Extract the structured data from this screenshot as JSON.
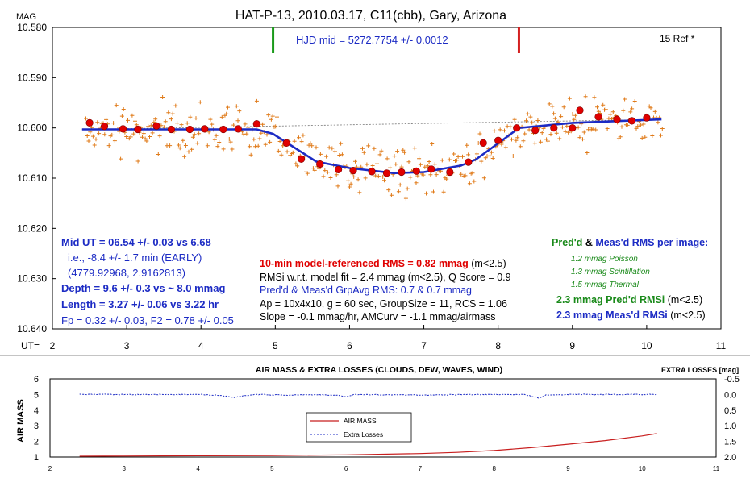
{
  "chart_data": [
    {
      "type": "scatter",
      "title": "HAT-P-13, 2010.03.17, C11(cbb), Gary, Arizona",
      "ylabel": "MAG",
      "xlabel": "UT=",
      "xlim": [
        2,
        11
      ],
      "ylim": [
        10.64,
        10.58
      ],
      "inverted_y": true,
      "x_ticks": [
        "2",
        "3",
        "4",
        "5",
        "6",
        "7",
        "8",
        "9",
        "10",
        "11"
      ],
      "y_ticks": [
        "10.580",
        "10.590",
        "10.600",
        "10.610",
        "10.620",
        "10.630",
        "10.640"
      ],
      "colors": {
        "raw": "#e07b1a",
        "binned": "#e00000",
        "model": "#1c2bc4",
        "baseline": "#777777",
        "ingress_marker": "#1a9a1a",
        "egress_marker": "#d42020"
      },
      "hjd_label": "HJD mid = 5272.7754 +/- 0.0012",
      "ref_label": "15 Ref *",
      "ingress_ut": 4.97,
      "egress_ut": 8.28,
      "series": [
        {
          "kind": "model",
          "x": [
            2.4,
            4.75,
            4.97,
            5.55,
            6.0,
            6.6,
            7.0,
            7.5,
            7.7,
            8.1,
            8.28,
            9.0,
            10.2
          ],
          "y": [
            10.6003,
            10.6003,
            10.6012,
            10.6067,
            10.608,
            10.609,
            10.6088,
            10.6075,
            10.6063,
            10.602,
            10.6,
            10.599,
            10.5983
          ]
        },
        {
          "kind": "binned",
          "x": [
            2.5,
            2.7,
            2.95,
            3.15,
            3.4,
            3.6,
            3.85,
            4.05,
            4.3,
            4.5,
            4.75,
            5.15,
            5.35,
            5.6,
            5.85,
            6.05,
            6.3,
            6.5,
            6.7,
            6.9,
            7.1,
            7.35,
            7.6,
            7.8,
            8.0,
            8.25,
            8.5,
            8.75,
            9.0,
            9.1,
            9.35,
            9.6,
            9.8,
            10.0
          ],
          "y": [
            10.599,
            10.5997,
            10.6002,
            10.6003,
            10.5996,
            10.6003,
            10.6003,
            10.6002,
            10.6003,
            10.6002,
            10.5992,
            10.603,
            10.6062,
            10.6072,
            10.6083,
            10.6085,
            10.6087,
            10.609,
            10.6088,
            10.6086,
            10.6082,
            10.6088,
            10.6068,
            10.603,
            10.6025,
            10.6,
            10.6005,
            10.6,
            10.6,
            10.5965,
            10.5978,
            10.5983,
            10.5986,
            10.598
          ]
        }
      ],
      "annotations_left": [
        {
          "text": "Mid UT = 06.54 +/- 0.03 vs 6.68",
          "color": "#1c2bc4",
          "bold": true
        },
        {
          "text": "i.e., -8.4 +/- 1.7 min (EARLY)",
          "color": "#1c2bc4",
          "bold": false
        },
        {
          "text": "(4779.92968, 2.9162813)",
          "color": "#1c2bc4",
          "bold": false
        },
        {
          "text": "Depth = 9.6 +/- 0.3 vs  ~ 8.0 mmag",
          "color": "#1c2bc4",
          "bold": true
        },
        {
          "text": "Length = 3.27 +/- 0.06 vs 3.22 hr",
          "color": "#1c2bc4",
          "bold": true
        },
        {
          "text": "Fp = 0.32 +/- 0.03, F2 = 0.78 +/- 0.05",
          "color": "#1c2bc4",
          "bold": false
        }
      ],
      "annotations_center": [
        {
          "text": "10-min model-referenced RMS = 0.82 mmag",
          "suffix": " (m<2.5)",
          "color": "#e00000",
          "bold": true
        },
        {
          "text": "RMSi w.r.t. model fit = 2.4 mmag (m<2.5), Q Score = 0.9",
          "suffix": "",
          "color": "#000000",
          "bold": false
        },
        {
          "text": "Pred'd & Meas'd GrpAvg RMS: 0.7 & 0.7 mmag",
          "suffix": "",
          "color": "#1c2bc4",
          "bold": false
        },
        {
          "text": "Ap = 10x4x10, g = 60 sec, GroupSize = 11, RCS = 1.06",
          "suffix": "",
          "color": "#000000",
          "bold": false
        },
        {
          "text": "Slope = -0.1 mmag/hr, AMCurv = -1.1 mmag/airmass",
          "suffix": "",
          "color": "#000000",
          "bold": false
        }
      ],
      "annotations_right": {
        "header_pred": "Pred'd",
        "header_amp": " & ",
        "header_meas": "Meas'd RMS per image:",
        "poisson": "1.2 mmag Poisson",
        "scintillation": "1.3 mmag Scintillation",
        "thermal": "1.5 mmag Thermal",
        "pred_rmsi": "2.3 mmag Pred'd RMSi",
        "meas_rmsi": "2.3 mmag Meas'd RMSi",
        "m_suffix": " (m<2.5)"
      }
    },
    {
      "type": "line",
      "title": "AIR MASS & EXTRA LOSSES (CLOUDS, DEW, WAVES, WIND)",
      "ylabel": "AIR MASS",
      "y2label": "EXTRA LOSSES [mag]",
      "xlim": [
        2,
        11
      ],
      "ylim": [
        1,
        6
      ],
      "y2lim": [
        2.0,
        -0.5
      ],
      "x_ticks": [
        "2",
        "3",
        "4",
        "5",
        "6",
        "7",
        "8",
        "9",
        "10",
        "11"
      ],
      "y_ticks": [
        "1",
        "2",
        "3",
        "4",
        "5",
        "6"
      ],
      "y2_ticks": [
        "-0.5",
        "0.0",
        "0.5",
        "1.0",
        "1.5",
        "2.0"
      ],
      "legend": {
        "placement": "center-left",
        "entries": [
          "AIR MASS",
          "Extra Losses"
        ]
      },
      "series": [
        {
          "name": "AIR MASS",
          "color": "#c81e1e",
          "x": [
            2.4,
            3,
            4,
            5,
            6,
            7,
            7.5,
            8,
            8.5,
            9,
            9.5,
            10,
            10.2
          ],
          "y": [
            1.05,
            1.06,
            1.08,
            1.1,
            1.14,
            1.22,
            1.3,
            1.42,
            1.6,
            1.82,
            2.05,
            2.35,
            2.5
          ]
        },
        {
          "name": "Extra Losses",
          "color": "#1c2bc4",
          "x": [
            2.4,
            4.0,
            4.3,
            4.5,
            4.6,
            4.8,
            5.2,
            5.5,
            5.9,
            6.0,
            6.1,
            7.0,
            7.8,
            8.4,
            8.55,
            8.6,
            8.7,
            9.0,
            10.2
          ],
          "y": [
            0.0,
            0.0,
            0.03,
            0.1,
            0.04,
            0.0,
            0.02,
            0.0,
            0.03,
            0.08,
            0.0,
            0.02,
            0.0,
            0.0,
            0.08,
            0.12,
            0.02,
            0.0,
            0.0
          ]
        }
      ]
    }
  ]
}
